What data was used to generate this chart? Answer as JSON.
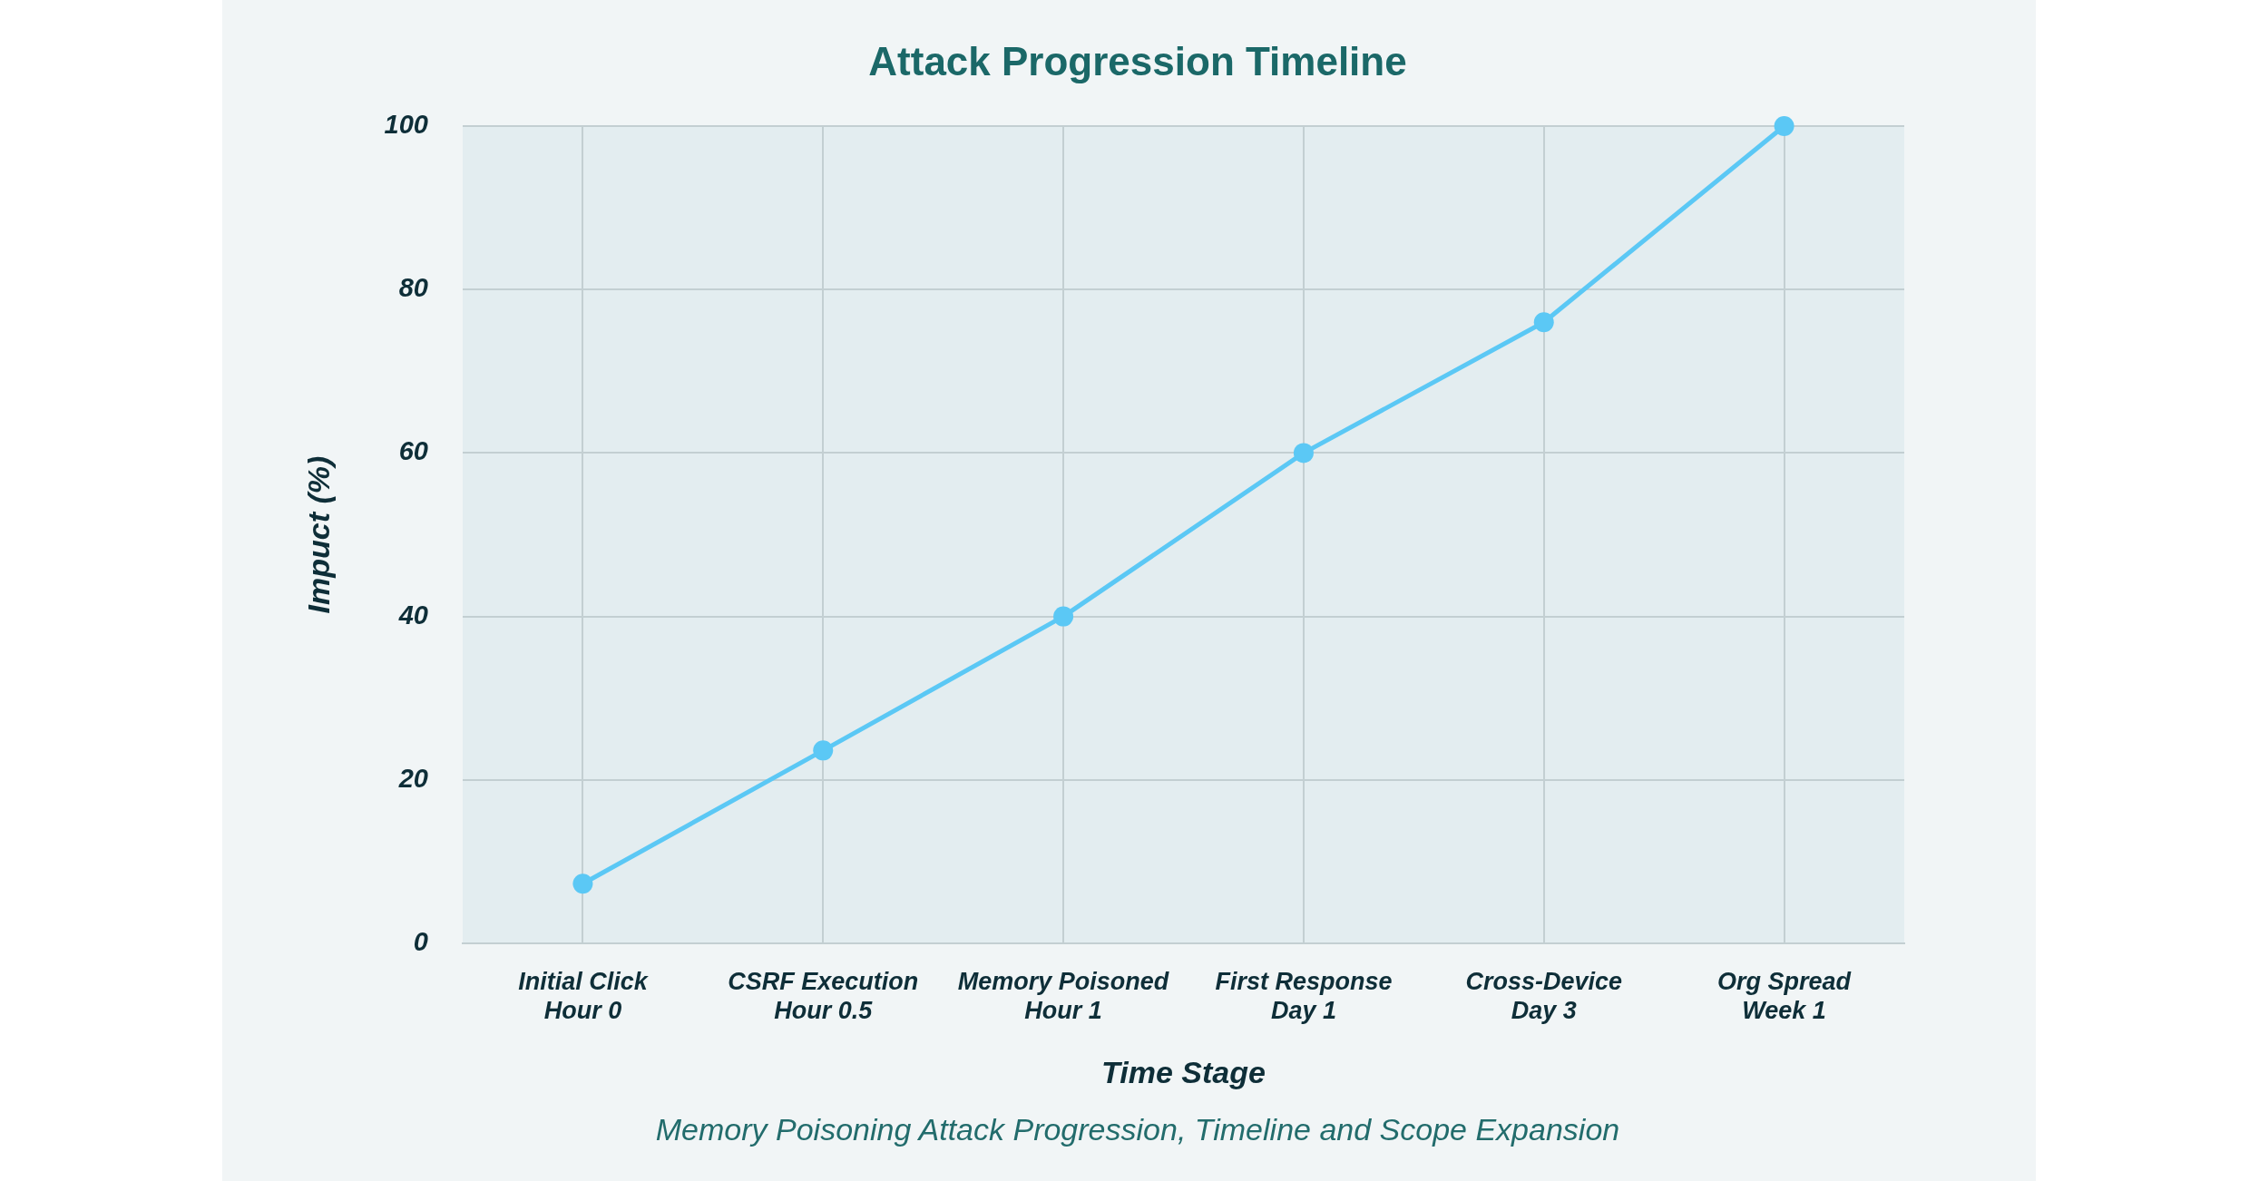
{
  "chart_data": {
    "type": "line",
    "title": "Attack Progression Timeline",
    "xlabel": "Time Stage",
    "ylabel": "Impuct (%)",
    "annotations": [
      "Memory Poisoning Attack Progression, Timeline and Scope Expansion"
    ],
    "categories": [
      "Initial Click\nHour 0",
      "CSRF Execution\nHour 0.5",
      "Memory Poisoned\nHour 1",
      "First Response\nDay 1",
      "Cross-Device\nDay 3",
      "Org Spread\nWeek 1"
    ],
    "values": [
      7.3,
      23.6,
      40,
      60,
      76,
      100
    ],
    "color": "#5bc8f5",
    "ylim": [
      0,
      100
    ],
    "yticks": [
      0,
      20,
      40,
      60,
      80,
      100
    ],
    "grid": true,
    "marker": "circle",
    "line_style": "solid"
  }
}
